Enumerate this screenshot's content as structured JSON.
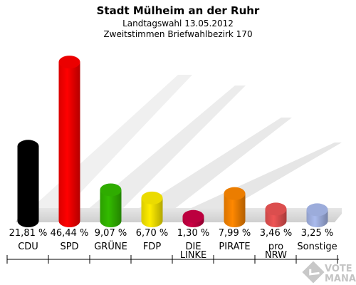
{
  "chart_data": {
    "type": "bar",
    "title": "Stadt Mülheim an der Ruhr",
    "subtitle_lines": [
      "Landtagswahl 13.05.2012",
      "Zweitstimmen Briefwahlbezirk 170"
    ],
    "categories": [
      {
        "label_lines": [
          "CDU"
        ]
      },
      {
        "label_lines": [
          "SPD"
        ]
      },
      {
        "label_lines": [
          "GRÜNE"
        ]
      },
      {
        "label_lines": [
          "FDP"
        ]
      },
      {
        "label_lines": [
          "DIE",
          "LINKE"
        ]
      },
      {
        "label_lines": [
          "PIRATE"
        ]
      },
      {
        "label_lines": [
          "pro",
          "NRW"
        ]
      },
      {
        "label_lines": [
          "Sonstige"
        ]
      }
    ],
    "values": [
      21.81,
      46.44,
      9.07,
      6.7,
      1.3,
      7.99,
      3.46,
      3.25
    ],
    "value_labels": [
      "21,81 %",
      "46,44 %",
      "9,07 %",
      "6,70 %",
      "1,30 %",
      "7,99 %",
      "3,46 %",
      "3,25 %"
    ],
    "colors": [
      "#000000",
      "#ff0000",
      "#33bb00",
      "#ffee00",
      "#cc0044",
      "#ff8800",
      "#ee5555",
      "#aabbee"
    ],
    "ylim": [
      0,
      50
    ],
    "grid": false,
    "legend": "none"
  },
  "watermark": {
    "line1": "VOTE",
    "line2": "MANAGER"
  }
}
